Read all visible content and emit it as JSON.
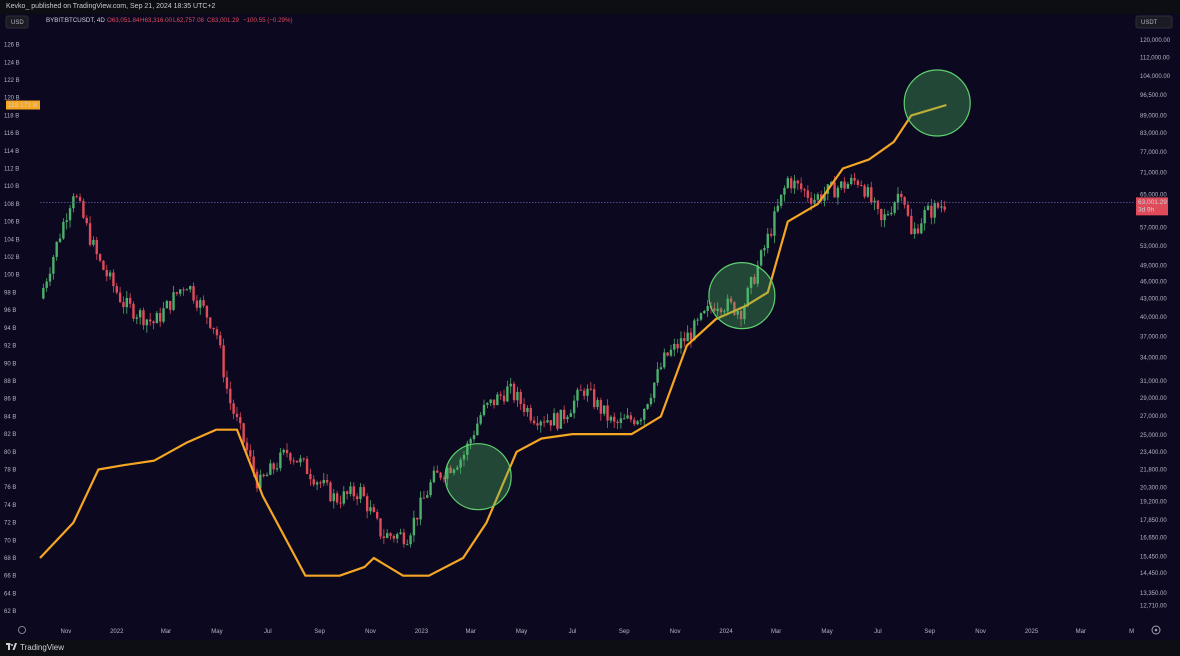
{
  "header": {
    "publish_line": "Kevko_ published on TradingView.com, Sep 21, 2024 18:35 UTC+2"
  },
  "legend": {
    "symbol": "BYBIT:BTCUSDT, 4D",
    "open": "O63,051.84",
    "high": "H63,316.00",
    "low": "L62,757.08",
    "close": "C63,001.29",
    "change": "−100.55 (−0.29%)"
  },
  "left_axis": {
    "unit_button": "USD",
    "min": 61,
    "max": 129,
    "ticks": [
      "62 B",
      "64 B",
      "66 B",
      "68 B",
      "70 B",
      "72 B",
      "74 B",
      "76 B",
      "78 B",
      "80 B",
      "82 B",
      "84 B",
      "86 B",
      "88 B",
      "90 B",
      "92 B",
      "94 B",
      "96 B",
      "98 B",
      "100 B",
      "102 B",
      "104 B",
      "106 B",
      "108 B",
      "110 B",
      "112 B",
      "114 B",
      "116 B",
      "118 B",
      "120 B",
      "122 B",
      "124 B",
      "126 B"
    ],
    "current_tag": "119.171 B"
  },
  "right_axis": {
    "unit_button": "USDT",
    "scale": "log",
    "min": 12000,
    "max": 131000,
    "ticks": [
      "12,710.00",
      "13,350.00",
      "14,450.00",
      "15,450.00",
      "16,650.00",
      "17,850.00",
      "19,200.00",
      "20,300.00",
      "21,800.00",
      "23,400.00",
      "25,000.00",
      "27,000.00",
      "29,000.00",
      "31,000.00",
      "34,000.00",
      "37,000.00",
      "40,000.00",
      "43,000.00",
      "46,000.00",
      "49,000.00",
      "53,000.00",
      "57,000.00",
      "61,000.00",
      "65,000.00",
      "71,000.00",
      "77,000.00",
      "83,000.00",
      "89,000.00",
      "96,500.00",
      "104,000.00",
      "112,000.00",
      "120,000.00",
      "128,000.00"
    ],
    "current_price": "63,001.29",
    "countdown": "3d 9h"
  },
  "x_axis": {
    "labels": [
      "Nov",
      "2022",
      "Mar",
      "May",
      "Jul",
      "Sep",
      "Nov",
      "2023",
      "Mar",
      "May",
      "Jul",
      "Sep",
      "Nov",
      "2024",
      "Mar",
      "May",
      "Jul",
      "Sep",
      "Nov",
      "2025",
      "Mar",
      "M"
    ]
  },
  "footer": {
    "brand": "TradingView"
  },
  "colors": {
    "background": "#0b0820",
    "up": "#4caf6a",
    "down": "#e04b5a",
    "liquidity_line": "#f5a623",
    "highlight_circle": "#5fd06f"
  },
  "chart_data": {
    "type": "candlestick+line",
    "symbol": "BYBIT:BTCUSDT",
    "interval": "4D",
    "price_axis": "right, log scale, USDT",
    "line_axis": "left, linear, USD (B)",
    "x_range": [
      "2021-10",
      "2025-05"
    ],
    "price_close_series": {
      "x": [
        "2021-10-01",
        "2021-11-10",
        "2021-12-10",
        "2022-01-10",
        "2022-02-15",
        "2022-03-25",
        "2022-04-30",
        "2022-05-15",
        "2022-06-20",
        "2022-07-25",
        "2022-08-15",
        "2022-09-20",
        "2022-10-20",
        "2022-11-15",
        "2022-12-15",
        "2023-01-15",
        "2023-02-20",
        "2023-03-15",
        "2023-04-15",
        "2023-05-15",
        "2023-06-15",
        "2023-07-15",
        "2023-08-20",
        "2023-09-20",
        "2023-10-20",
        "2023-11-20",
        "2023-12-20",
        "2024-01-20",
        "2024-02-15",
        "2024-03-15",
        "2024-04-15",
        "2024-05-15",
        "2024-06-10",
        "2024-07-05",
        "2024-07-30",
        "2024-08-10",
        "2024-08-25",
        "2024-09-21"
      ],
      "y": [
        43000,
        66000,
        50000,
        42000,
        39000,
        46000,
        38000,
        29000,
        20500,
        23500,
        22000,
        19400,
        20000,
        16800,
        16800,
        21000,
        23000,
        27500,
        30000,
        27000,
        26500,
        30000,
        26000,
        27000,
        34000,
        37500,
        42500,
        41000,
        52000,
        69000,
        64000,
        67000,
        69000,
        58000,
        67000,
        55000,
        60000,
        63001
      ]
    },
    "global_liquidity_B": {
      "x": [
        "2021-10-01",
        "2021-11-10",
        "2021-12-10",
        "2022-01-10",
        "2022-02-15",
        "2022-03-25",
        "2022-04-30",
        "2022-05-25",
        "2022-06-25",
        "2022-08-15",
        "2022-09-25",
        "2022-10-25",
        "2022-11-05",
        "2022-12-10",
        "2023-01-10",
        "2023-02-20",
        "2023-03-20",
        "2023-04-25",
        "2023-05-25",
        "2023-07-01",
        "2023-08-10",
        "2023-09-10",
        "2023-10-15",
        "2023-11-15",
        "2023-12-20",
        "2024-01-25",
        "2024-02-20",
        "2024-03-15",
        "2024-04-20",
        "2024-05-20",
        "2024-06-20",
        "2024-07-20",
        "2024-08-10",
        "2024-09-21"
      ],
      "y": [
        68,
        72,
        78,
        78.5,
        79,
        81,
        82.5,
        82.5,
        75,
        66,
        66,
        67,
        68,
        66,
        66,
        68,
        72,
        80,
        81.5,
        82,
        82,
        82,
        84,
        92,
        95,
        96.5,
        98,
        106,
        108,
        112,
        113,
        115,
        118,
        119.171
      ]
    },
    "highlights": [
      "2023-03",
      "2024-01",
      "2024-09"
    ]
  }
}
